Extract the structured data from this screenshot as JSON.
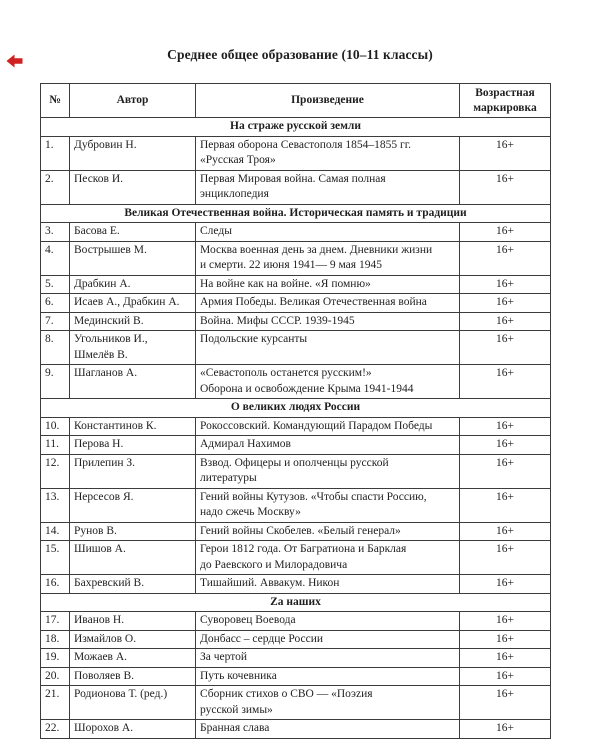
{
  "page": {
    "title": "Среднее общее образование (10–11 классы)"
  },
  "icons": {
    "red_arrow": "left-pointing red arrow marker",
    "red_arrow_color": "#cf2121"
  },
  "table": {
    "headers": [
      "№",
      "Автор",
      "Произведение",
      "Возрастная маркировка"
    ],
    "age_marking_all": "16+",
    "sections": [
      {
        "title": "На страже русской земли",
        "rows": [
          {
            "num": "1.",
            "author": "Дубровин Н.",
            "work": "Первая оборона Севастополя 1854–1855 гг.\n«Русская Троя»",
            "age": "16+"
          },
          {
            "num": "2.",
            "author": "Песков И.",
            "work": "Первая Мировая война. Самая полная\nэнциклопедия",
            "age": "16+"
          }
        ]
      },
      {
        "title": "Великая Отечественная война. Историческая память и традиции",
        "rows": [
          {
            "num": "3.",
            "author": "Басова Е.",
            "work": "Следы",
            "age": "16+"
          },
          {
            "num": "4.",
            "author": "Вострышев М.",
            "work": "Москва военная день за днем. Дневники жизни\nи смерти. 22 июня 1941— 9 мая 1945",
            "age": "16+"
          },
          {
            "num": "5.",
            "author": "Драбкин А.",
            "work": "На войне как на войне. «Я помню»",
            "age": "16+"
          },
          {
            "num": "6.",
            "author": "Исаев А., Драбкин А.",
            "work": "Армия Победы. Великая Отечественная война",
            "age": "16+"
          },
          {
            "num": "7.",
            "author": "Мединский В.",
            "work": "Война. Мифы СССР. 1939-1945",
            "age": "16+"
          },
          {
            "num": "8.",
            "author": "Угольников И.,\nШмелёв В.",
            "work": "Подольские курсанты",
            "age": "16+"
          },
          {
            "num": "9.",
            "author": "Шагланов А.",
            "work": "«Севастополь останется русским!»\nОборона и освобождение Крыма 1941-1944",
            "age": "16+"
          }
        ]
      },
      {
        "title": "О великих людях России",
        "rows": [
          {
            "num": "10.",
            "author": "Константинов К.",
            "work": "Рокоссовский. Командующий Парадом Победы",
            "age": "16+"
          },
          {
            "num": "11.",
            "author": "Перова Н.",
            "work": "Адмирал Нахимов",
            "age": "16+"
          },
          {
            "num": "12.",
            "author": "Прилепин З.",
            "work": "Взвод. Офицеры и ополченцы русской\nлитературы",
            "age": "16+"
          },
          {
            "num": "13.",
            "author": "Нерсесов Я.",
            "work": "Гений войны Кутузов. «Чтобы спасти Россию,\nнадо сжечь Москву»",
            "age": "16+"
          },
          {
            "num": "14.",
            "author": "Рунов В.",
            "work": "Гений войны Скобелев. «Белый генерал»",
            "age": "16+"
          },
          {
            "num": "15.",
            "author": "Шишов А.",
            "work": "Герои 1812 года. От Багратиона и Барклая\nдо Раевского и Милорадовича",
            "age": "16+"
          },
          {
            "num": "16.",
            "author": "Бахревский В.",
            "work": "Тишайший. Аввакум. Никон",
            "age": "16+"
          }
        ]
      },
      {
        "title": "Zа наших",
        "rows": [
          {
            "num": "17.",
            "author": "Иванов Н.",
            "work": "Суворовец Воевода",
            "age": "16+"
          },
          {
            "num": "18.",
            "author": "Измайлов О.",
            "work": "Донбасс – сердце России",
            "age": "16+"
          },
          {
            "num": "19.",
            "author": "Можаев А.",
            "work": "За чертой",
            "age": "16+"
          },
          {
            "num": "20.",
            "author": "Поволяев В.",
            "work": "Путь кочевника",
            "age": "16+"
          },
          {
            "num": "21.",
            "author": "Родионова Т. (ред.)",
            "work": "Сборник стихов о СВО — «Поэzия\nрусской зимы»",
            "age": "16+"
          },
          {
            "num": "22.",
            "author": "Шорохов А.",
            "work": "Бранная слава",
            "age": "16+"
          }
        ]
      }
    ]
  }
}
